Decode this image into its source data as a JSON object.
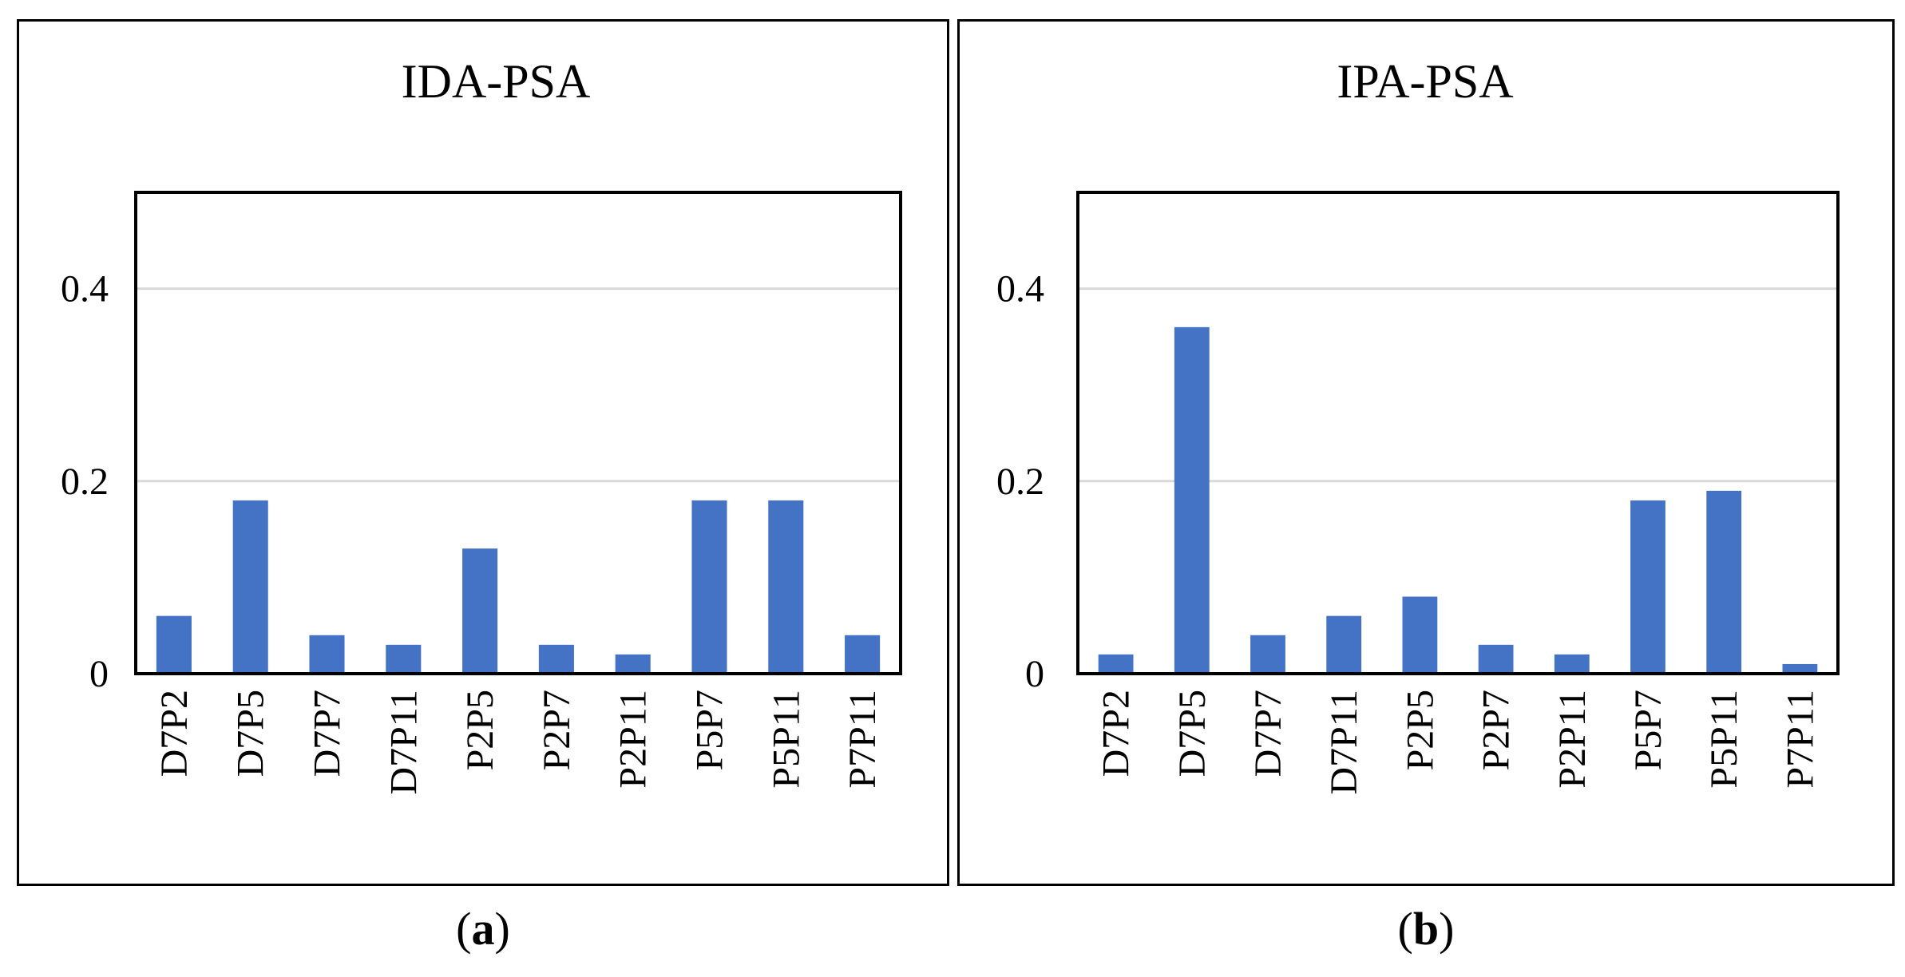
{
  "captions": [
    {
      "open": "(",
      "letter": "a",
      "close": ")"
    },
    {
      "open": "(",
      "letter": "b",
      "close": ")"
    }
  ],
  "colors": {
    "bar": "#4472C4",
    "grid": "#D9D9D9",
    "axis": "#000000"
  },
  "chart_data": [
    {
      "type": "bar",
      "title": "IDA-PSA",
      "xlabel": "",
      "ylabel": "",
      "ylim": [
        0,
        0.5
      ],
      "yticks": [
        0,
        0.2,
        0.4
      ],
      "ytick_labels": [
        "0",
        "0.2",
        "0.4"
      ],
      "categories": [
        "D7P2",
        "D7P5",
        "D7P7",
        "D7P11",
        "P2P5",
        "P2P7",
        "P2P11",
        "P5P7",
        "P5P11",
        "P7P11"
      ],
      "values": [
        0.06,
        0.18,
        0.04,
        0.03,
        0.13,
        0.03,
        0.02,
        0.18,
        0.18,
        0.04
      ],
      "grid": true,
      "legend": "none"
    },
    {
      "type": "bar",
      "title": "IPA-PSA",
      "xlabel": "",
      "ylabel": "",
      "ylim": [
        0,
        0.5
      ],
      "yticks": [
        0,
        0.2,
        0.4
      ],
      "ytick_labels": [
        "0",
        "0.2",
        "0.4"
      ],
      "categories": [
        "D7P2",
        "D7P5",
        "D7P7",
        "D7P11",
        "P2P5",
        "P2P7",
        "P2P11",
        "P5P7",
        "P5P11",
        "P7P11"
      ],
      "values": [
        0.02,
        0.36,
        0.04,
        0.06,
        0.08,
        0.03,
        0.02,
        0.18,
        0.19,
        0.01
      ],
      "grid": true,
      "legend": "none"
    }
  ]
}
